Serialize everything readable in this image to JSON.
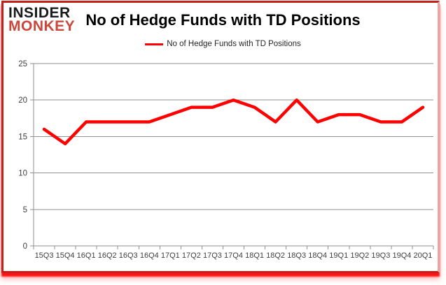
{
  "logo": {
    "line1": "INSIDER",
    "line2": "MONKEY"
  },
  "header": {
    "title": "No of Hedge Funds with TD Positions"
  },
  "legend": {
    "label": "No of Hedge Funds with TD Positions"
  },
  "colors": {
    "series": "#ff0000",
    "grid": "#8f8f8f",
    "axis_label": "#3f3f3f",
    "logo_red": "#cc4639",
    "frame_border": "#c2201a"
  },
  "chart_data": {
    "type": "line",
    "title": "No of Hedge Funds with TD Positions",
    "legend_entries": [
      "No of Hedge Funds with TD Positions"
    ],
    "legend_position": "top",
    "grid": "horizontal",
    "categories": [
      "15Q3",
      "15Q4",
      "16Q1",
      "16Q2",
      "16Q3",
      "16Q4",
      "17Q1",
      "17Q2",
      "17Q3",
      "17Q4",
      "18Q1",
      "18Q2",
      "18Q3",
      "18Q4",
      "19Q1",
      "19Q2",
      "19Q3",
      "19Q4",
      "20Q1"
    ],
    "series": [
      {
        "name": "No of Hedge Funds with TD Positions",
        "values": [
          16,
          14,
          17,
          17,
          17,
          17,
          18,
          19,
          19,
          20,
          19,
          17,
          20,
          17,
          18,
          18,
          17,
          17,
          19
        ]
      }
    ],
    "ylim": [
      0,
      25
    ],
    "ytick_step": 5,
    "xlabel": "",
    "ylabel": ""
  }
}
